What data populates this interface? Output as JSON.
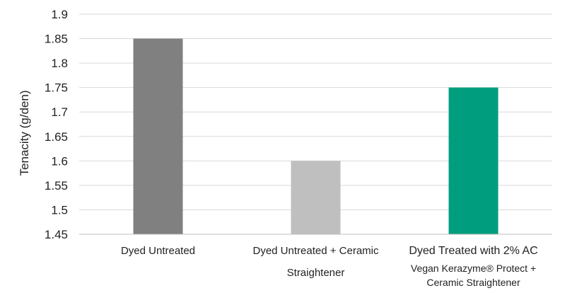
{
  "chart_data": {
    "type": "bar",
    "title": "",
    "xlabel": "",
    "ylabel": "Tenacity (g/den)",
    "ylim": [
      1.45,
      1.9
    ],
    "yticks": [
      "1.9",
      "1.85",
      "1.8",
      "1.75",
      "1.7",
      "1.65",
      "1.6",
      "1.55",
      "1.5",
      "1.45"
    ],
    "grid": true,
    "categories": [
      [
        "Dyed Untreated"
      ],
      [
        "Dyed Untreated + Ceramic",
        "Straightener"
      ],
      [
        "Dyed Treated with 2% AC",
        "Vegan Kerazyme® Protect +",
        "Ceramic Straightener"
      ]
    ],
    "values": [
      1.85,
      1.6,
      1.75
    ],
    "colors": [
      "#808080",
      "#bfbfbf",
      "#009e7e"
    ],
    "gridline_color": "#d9d9d9",
    "axis_color": "#bfbfbf"
  }
}
